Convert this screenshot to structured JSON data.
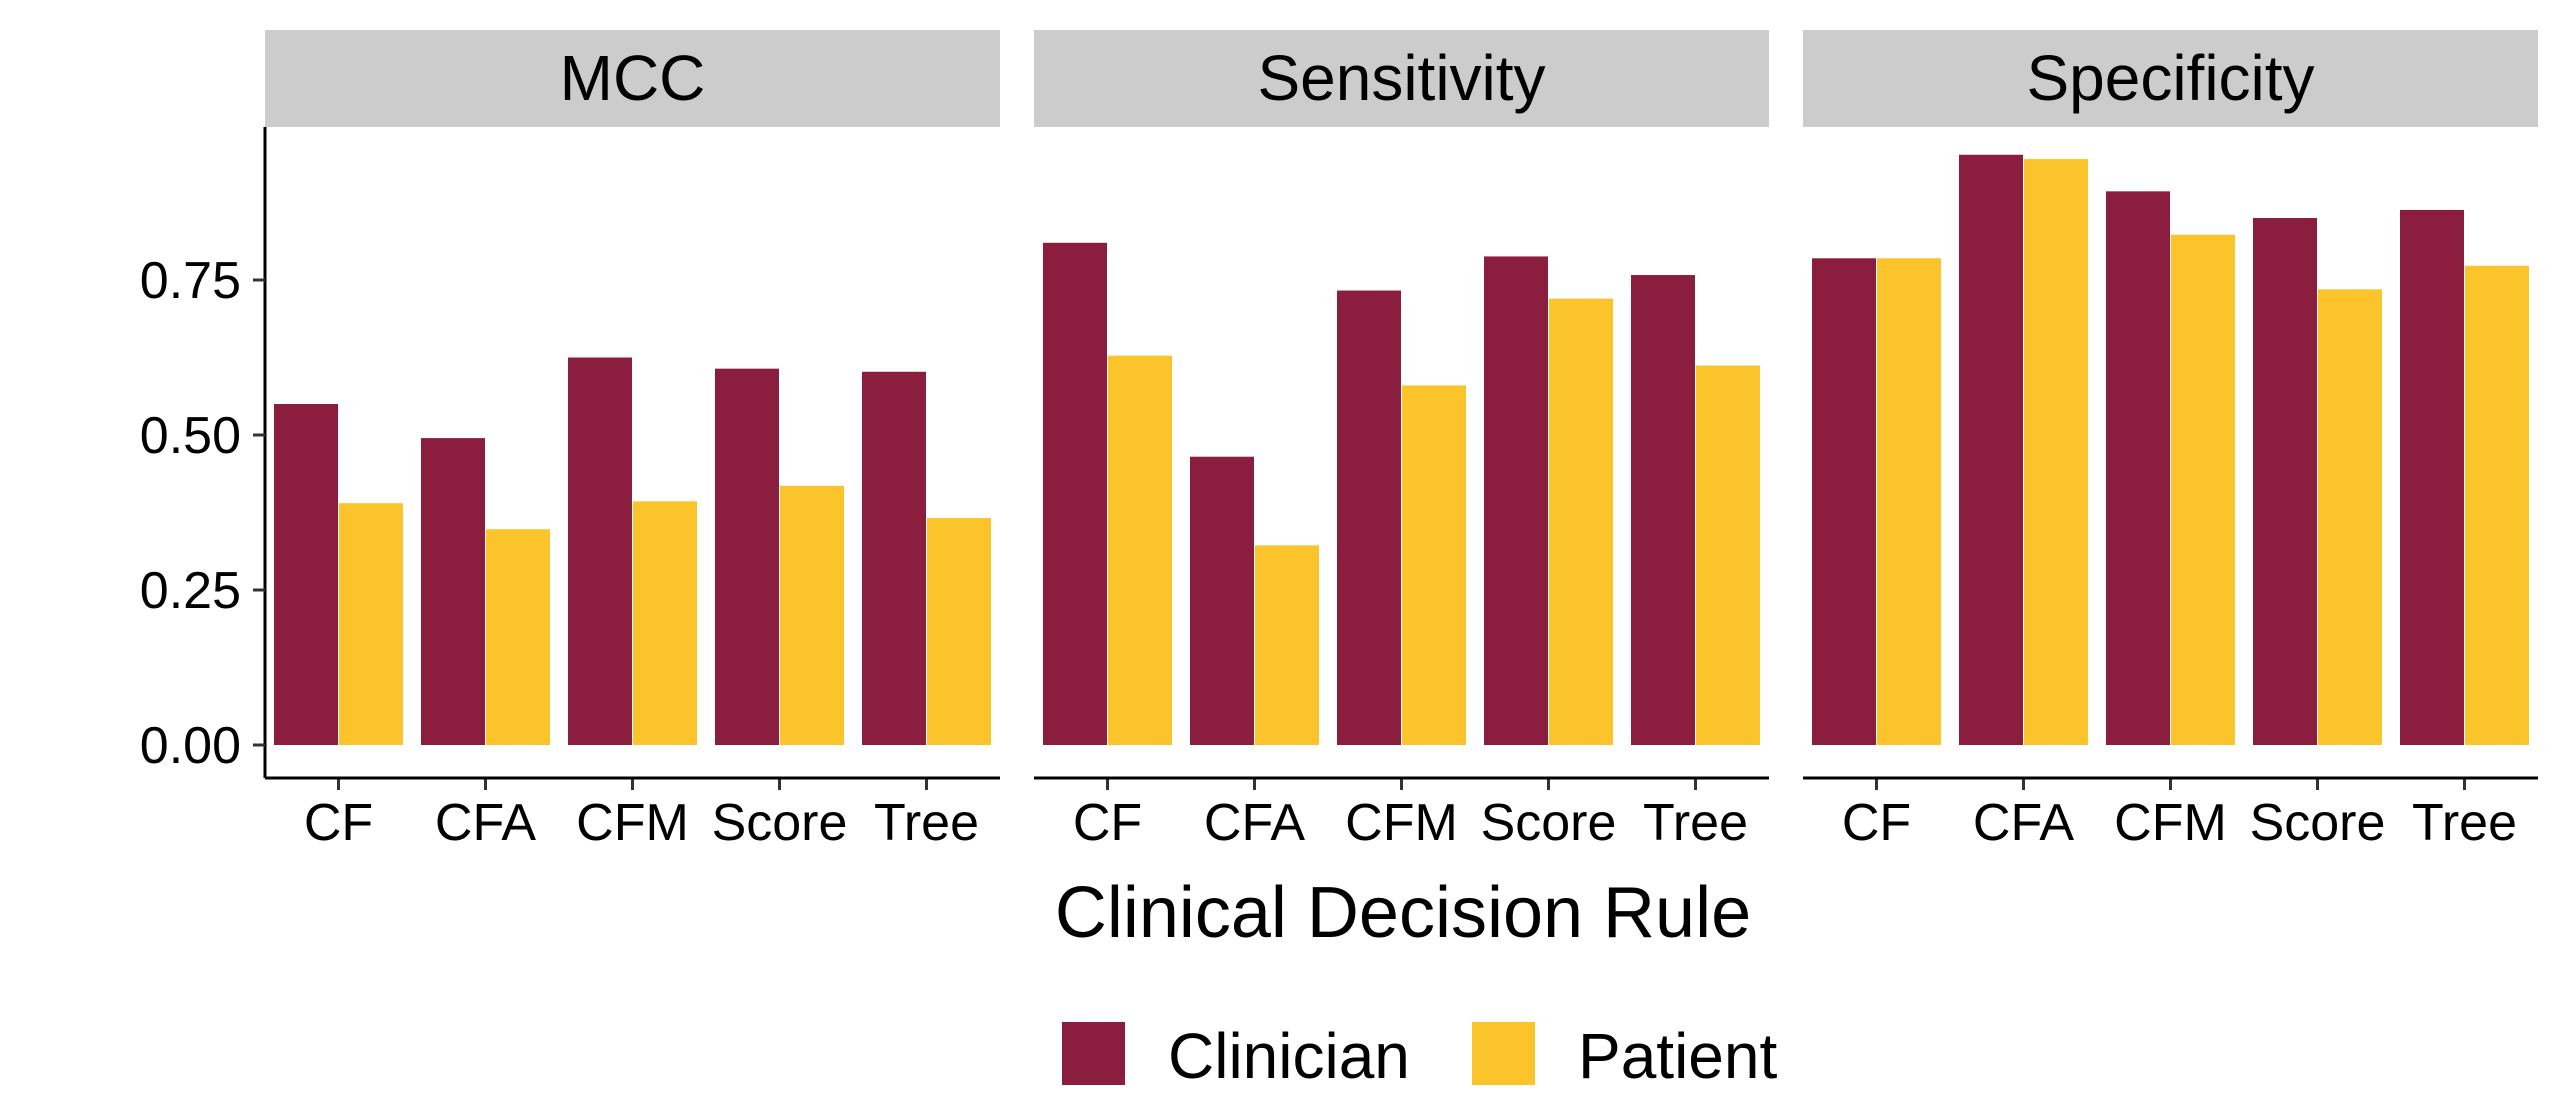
{
  "chart_data": {
    "type": "bar",
    "xlabel": "Clinical Decision Rule",
    "ylabel": "",
    "ylim": [
      0,
      1.0
    ],
    "yticks": [
      0.0,
      0.25,
      0.5,
      0.75
    ],
    "ytick_labels": [
      "0.00",
      "0.25",
      "0.50",
      "0.75"
    ],
    "grid": false,
    "legend_position": "bottom",
    "categories": [
      "CF",
      "CFA",
      "CFM",
      "Score",
      "Tree"
    ],
    "colors": {
      "Clinician": "#8b1e3f",
      "Patient": "#fcc42b",
      "strip": "#cccccc"
    },
    "legend": {
      "entries": [
        "Clinician",
        "Patient"
      ]
    },
    "panels": [
      {
        "title": "MCC",
        "series": [
          {
            "name": "Clinician",
            "values": [
              0.55,
              0.495,
              0.625,
              0.607,
              0.602
            ]
          },
          {
            "name": "Patient",
            "values": [
              0.39,
              0.348,
              0.393,
              0.418,
              0.366
            ]
          }
        ]
      },
      {
        "title": "Sensitivity",
        "series": [
          {
            "name": "Clinician",
            "values": [
              0.81,
              0.465,
              0.733,
              0.788,
              0.758
            ]
          },
          {
            "name": "Patient",
            "values": [
              0.628,
              0.322,
              0.58,
              0.72,
              0.612
            ]
          }
        ]
      },
      {
        "title": "Specificity",
        "series": [
          {
            "name": "Clinician",
            "values": [
              0.785,
              0.952,
              0.893,
              0.85,
              0.863
            ]
          },
          {
            "name": "Patient",
            "values": [
              0.785,
              0.945,
              0.823,
              0.735,
              0.773
            ]
          }
        ]
      }
    ]
  }
}
